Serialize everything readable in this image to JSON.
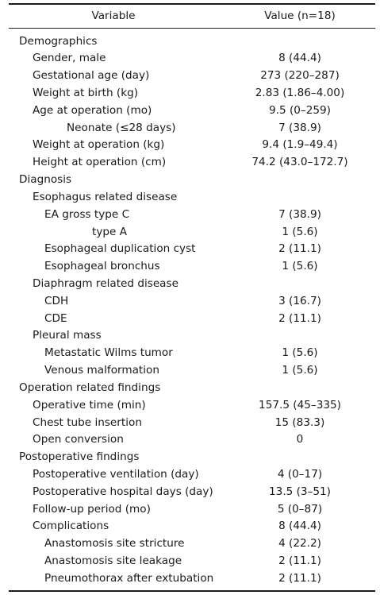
{
  "header": {
    "variable": "Variable",
    "value": "Value (n=18)"
  },
  "rows": [
    {
      "label": "Demographics",
      "value": "",
      "level": 0
    },
    {
      "label": "Gender, male",
      "value": "8 (44.4)",
      "level": 1
    },
    {
      "label": "Gestational age (day)",
      "value": "273 (220–287)",
      "level": 1
    },
    {
      "label": "Weight at birth (kg)",
      "value": "2.83 (1.86–4.00)",
      "level": 1
    },
    {
      "label": "Age at operation (mo)",
      "value": "9.5 (0–259)",
      "level": 1
    },
    {
      "label": "Neonate (≤28 days)",
      "value": "7 (38.9)",
      "level": "2n"
    },
    {
      "label": "Weight at operation (kg)",
      "value": "9.4 (1.9–49.4)",
      "level": 1
    },
    {
      "label": "Height at operation (cm)",
      "value": "74.2 (43.0–172.7)",
      "level": 1
    },
    {
      "label": "Diagnosis",
      "value": "",
      "level": 0
    },
    {
      "label": "Esophagus related disease",
      "value": "",
      "level": 1
    },
    {
      "label": "EA gross type C",
      "value": "7 (38.9)",
      "level": 2
    },
    {
      "label": "type A",
      "value": "1 (5.6)",
      "level": 3
    },
    {
      "label": "Esophageal duplication cyst",
      "value": "2 (11.1)",
      "level": 2
    },
    {
      "label": "Esophageal bronchus",
      "value": "1 (5.6)",
      "level": 2
    },
    {
      "label": "Diaphragm related disease",
      "value": "",
      "level": 1
    },
    {
      "label": "CDH",
      "value": "3 (16.7)",
      "level": 2
    },
    {
      "label": "CDE",
      "value": "2 (11.1)",
      "level": 2
    },
    {
      "label": "Pleural mass",
      "value": "",
      "level": 1
    },
    {
      "label": "Metastatic Wilms tumor",
      "value": "1 (5.6)",
      "level": 2
    },
    {
      "label": "Venous malformation",
      "value": "1 (5.6)",
      "level": 2
    },
    {
      "label": "Operation related findings",
      "value": "",
      "level": 0
    },
    {
      "label": "Operative time (min)",
      "value": "157.5 (45–335)",
      "level": 1
    },
    {
      "label": "Chest tube insertion",
      "value": "15 (83.3)",
      "level": 1
    },
    {
      "label": "Open conversion",
      "value": "0",
      "level": 1
    },
    {
      "label": "Postoperative findings",
      "value": "",
      "level": 0
    },
    {
      "label": "Postoperative ventilation (day)",
      "value": "4 (0–17)",
      "level": 1
    },
    {
      "label": "Postoperative hospital days (day)",
      "value": "13.5 (3–51)",
      "level": 1
    },
    {
      "label": "Follow-up period (mo)",
      "value": "5 (0–87)",
      "level": 1
    },
    {
      "label": "Complications",
      "value": "8 (44.4)",
      "level": 1
    },
    {
      "label": "Anastomosis site stricture",
      "value": "4 (22.2)",
      "level": 2
    },
    {
      "label": "Anastomosis site leakage",
      "value": "2 (11.1)",
      "level": 2
    },
    {
      "label": "Pneumothorax after extubation",
      "value": "2 (11.1)",
      "level": 2
    }
  ]
}
